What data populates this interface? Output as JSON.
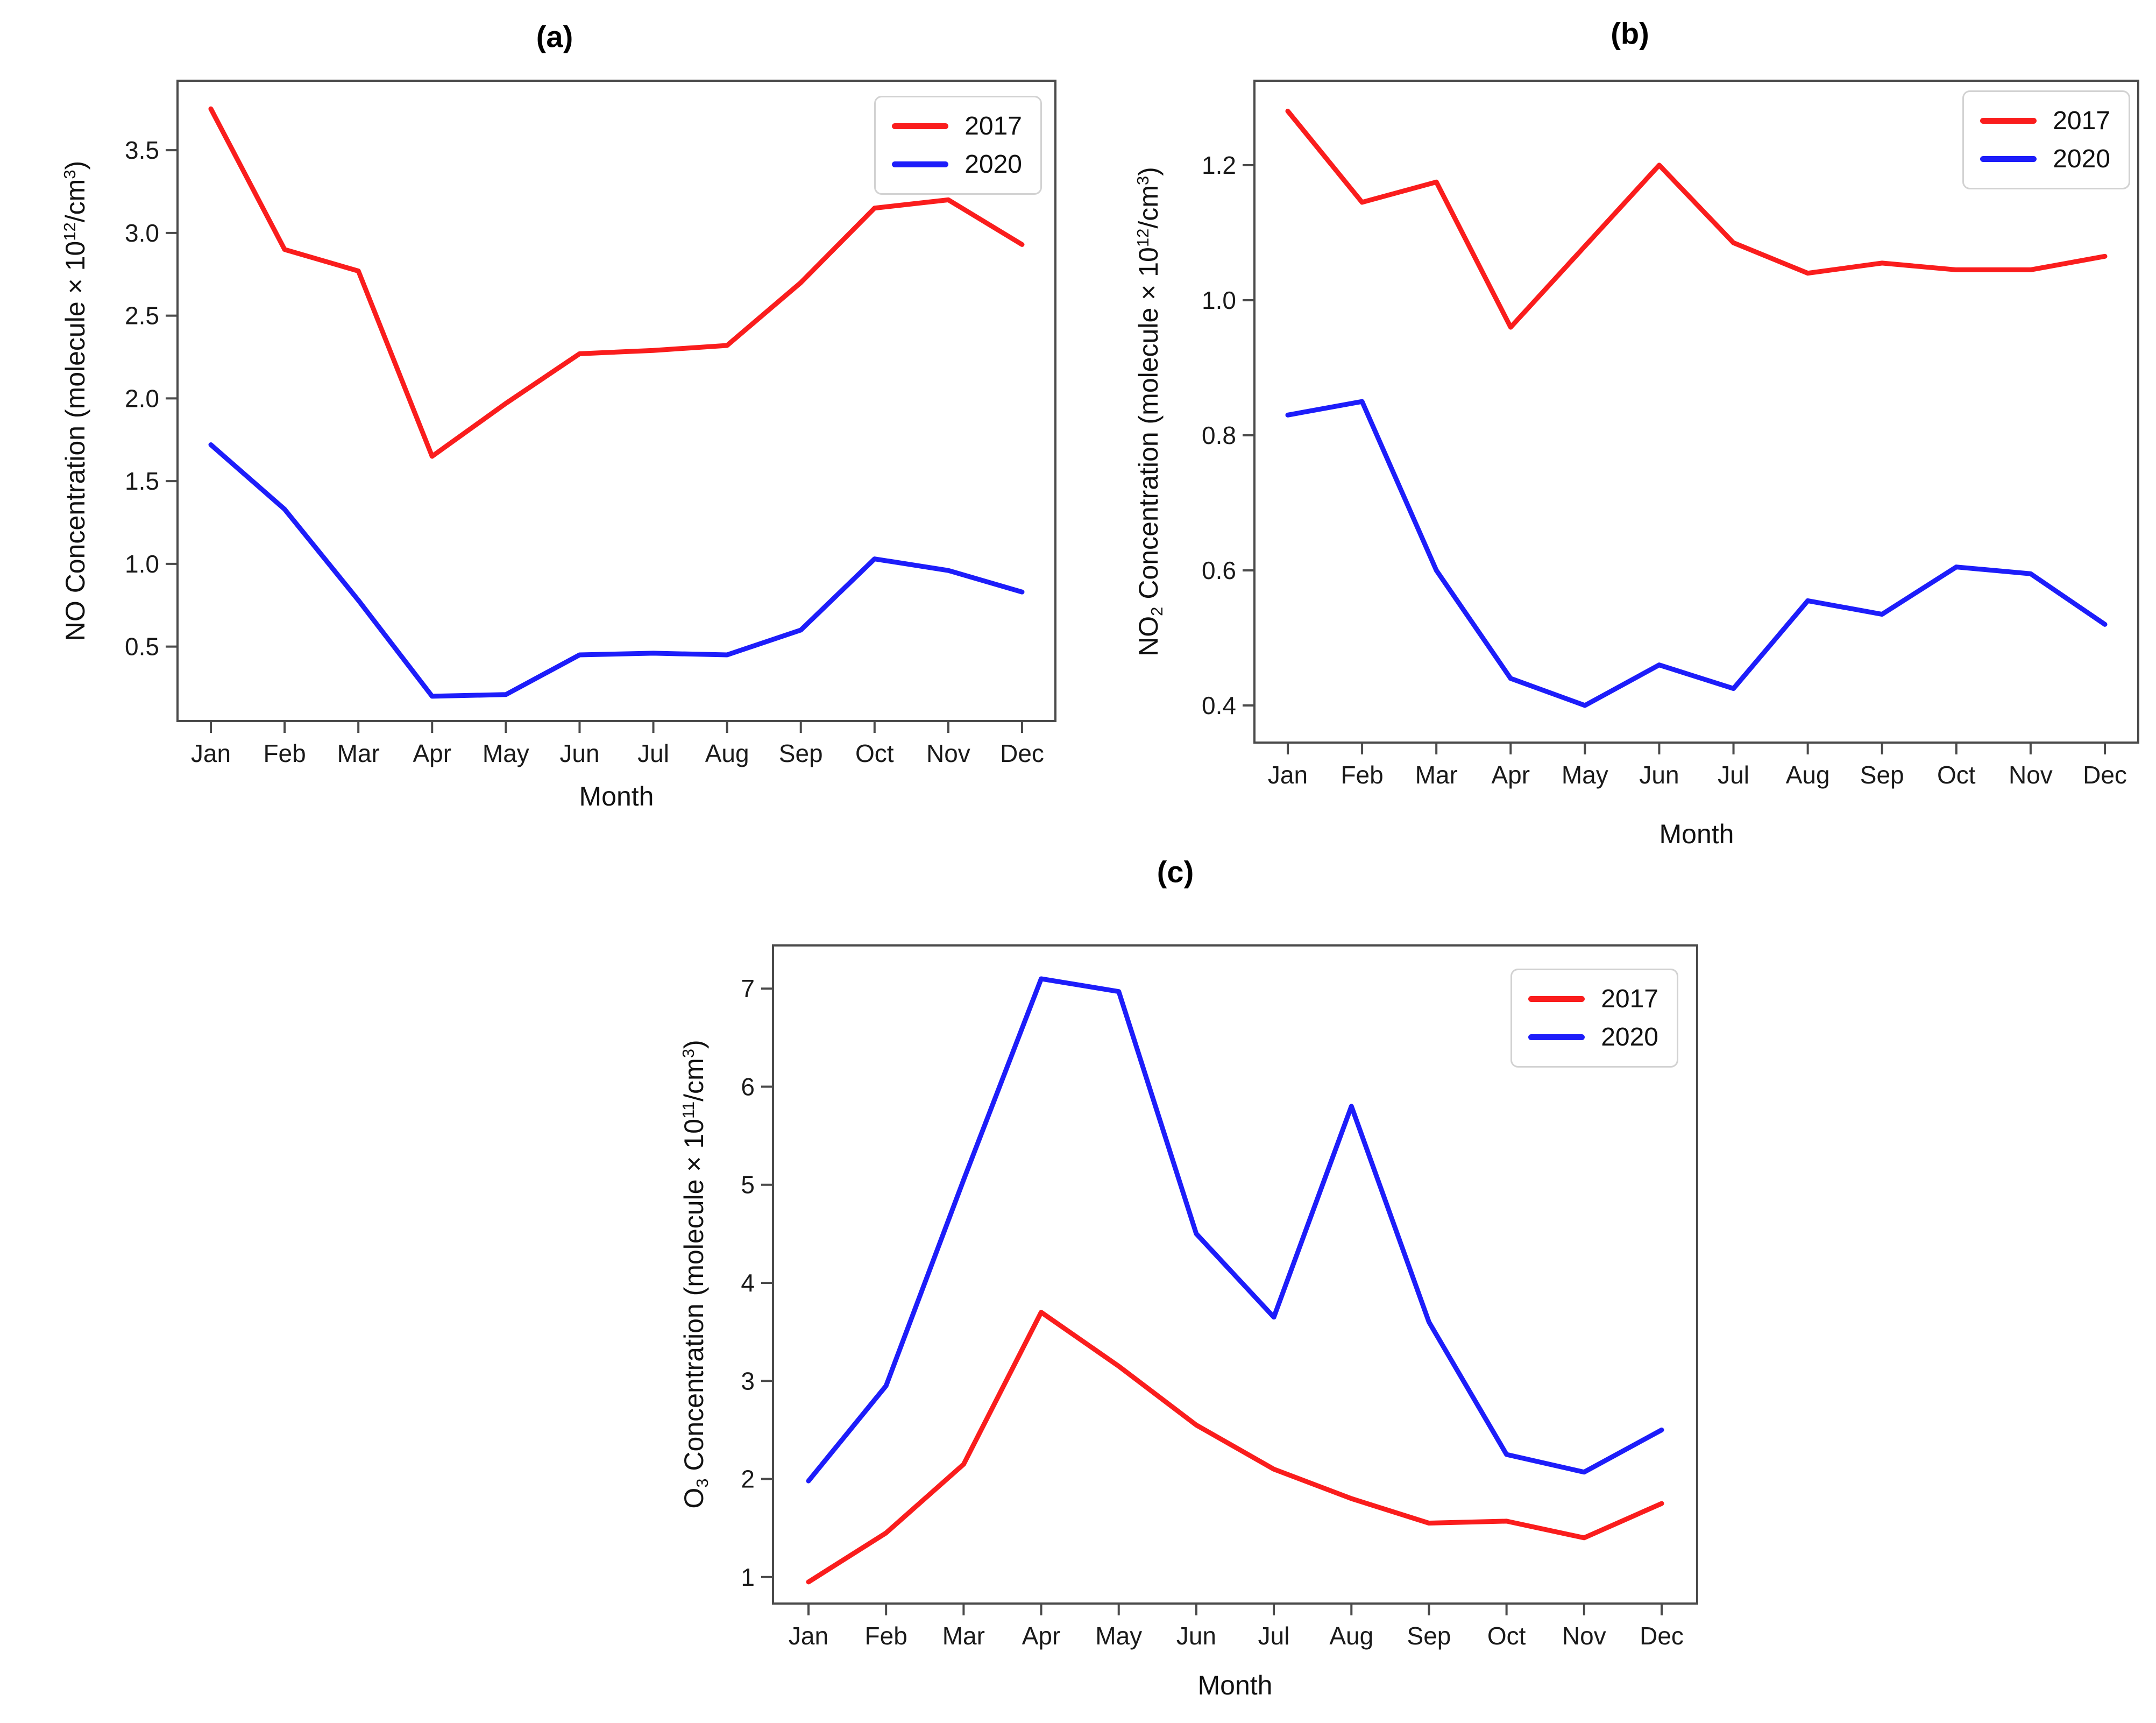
{
  "figure": {
    "background": "#ffffff"
  },
  "styles": {
    "axis_color": "#4a4a4a",
    "text_color": "#1a1a1a",
    "legend_border": "#d2d2d2",
    "series_2017_color": "#fa1d1d",
    "series_2020_color": "#1d1dfa"
  },
  "chart_data": [
    {
      "type": "line",
      "title": "(a)",
      "xlabel": "Month",
      "ylabel": "NO Concentration (molecule × 10¹²/cm³)",
      "ylabel_parts": [
        {
          "t": "NO Concentration (molecule × 10"
        },
        {
          "t": "12",
          "style": "sup"
        },
        {
          "t": "/cm"
        },
        {
          "t": "3",
          "style": "sup"
        },
        {
          "t": ")"
        }
      ],
      "categories": [
        "Jan",
        "Feb",
        "Mar",
        "Apr",
        "May",
        "Jun",
        "Jul",
        "Aug",
        "Sep",
        "Oct",
        "Nov",
        "Dec"
      ],
      "ylim": [
        0.05,
        3.92
      ],
      "yticks": {
        "values": [
          0.5,
          1.0,
          1.5,
          2.0,
          2.5,
          3.0,
          3.5
        ],
        "labels": [
          "0.5",
          "1.0",
          "1.5",
          "2.0",
          "2.5",
          "3.0",
          "3.5"
        ]
      },
      "grid": false,
      "legend_position": "upper right",
      "series": [
        {
          "name": "2017",
          "color": "#fa1d1d",
          "values": [
            3.75,
            2.9,
            2.77,
            1.65,
            1.97,
            2.27,
            2.29,
            2.32,
            2.7,
            3.15,
            3.2,
            2.93
          ]
        },
        {
          "name": "2020",
          "color": "#1d1dfa",
          "values": [
            1.72,
            1.33,
            0.78,
            0.2,
            0.21,
            0.45,
            0.46,
            0.45,
            0.6,
            1.03,
            0.96,
            0.83
          ]
        }
      ]
    },
    {
      "type": "line",
      "title": "(b)",
      "xlabel": "Month",
      "ylabel": "NO₂ Concentration (molecule × 10¹²/cm³)",
      "ylabel_parts": [
        {
          "t": "NO"
        },
        {
          "t": "2",
          "style": "sub"
        },
        {
          "t": " Concentration (molecule × 10"
        },
        {
          "t": "12",
          "style": "sup"
        },
        {
          "t": "/cm"
        },
        {
          "t": "3",
          "style": "sup"
        },
        {
          "t": ")"
        }
      ],
      "categories": [
        "Jan",
        "Feb",
        "Mar",
        "Apr",
        "May",
        "Jun",
        "Jul",
        "Aug",
        "Sep",
        "Oct",
        "Nov",
        "Dec"
      ],
      "ylim": [
        0.345,
        1.325
      ],
      "yticks": {
        "values": [
          0.4,
          0.6,
          0.8,
          1.0,
          1.2
        ],
        "labels": [
          "0.4",
          "0.6",
          "0.8",
          "1.0",
          "1.2"
        ]
      },
      "grid": false,
      "legend_position": "upper right",
      "series": [
        {
          "name": "2017",
          "color": "#fa1d1d",
          "values": [
            1.28,
            1.145,
            1.175,
            0.96,
            1.08,
            1.2,
            1.085,
            1.04,
            1.055,
            1.045,
            1.045,
            1.065
          ]
        },
        {
          "name": "2020",
          "color": "#1d1dfa",
          "values": [
            0.83,
            0.85,
            0.6,
            0.44,
            0.4,
            0.46,
            0.425,
            0.555,
            0.535,
            0.605,
            0.595,
            0.52
          ]
        }
      ]
    },
    {
      "type": "line",
      "title": "(c)",
      "xlabel": "Month",
      "ylabel": "O₃ Concentration (molecule × 10¹¹/cm³)",
      "ylabel_parts": [
        {
          "t": "O"
        },
        {
          "t": "3",
          "style": "sub"
        },
        {
          "t": " Concentration (molecule × 10"
        },
        {
          "t": "11",
          "style": "sup"
        },
        {
          "t": "/cm"
        },
        {
          "t": "3",
          "style": "sup"
        },
        {
          "t": ")"
        }
      ],
      "categories": [
        "Jan",
        "Feb",
        "Mar",
        "Apr",
        "May",
        "Jun",
        "Jul",
        "Aug",
        "Sep",
        "Oct",
        "Nov",
        "Dec"
      ],
      "ylim": [
        0.73,
        7.44
      ],
      "yticks": {
        "values": [
          1,
          2,
          3,
          4,
          5,
          6,
          7
        ],
        "labels": [
          "1",
          "2",
          "3",
          "4",
          "5",
          "6",
          "7"
        ]
      },
      "grid": false,
      "legend_position": "upper right",
      "series": [
        {
          "name": "2017",
          "color": "#fa1d1d",
          "values": [
            0.95,
            1.45,
            2.15,
            3.7,
            3.15,
            2.55,
            2.1,
            1.8,
            1.55,
            1.57,
            1.4,
            1.75
          ]
        },
        {
          "name": "2020",
          "color": "#1d1dfa",
          "values": [
            1.98,
            2.95,
            5.05,
            7.1,
            6.97,
            4.5,
            3.65,
            5.8,
            3.6,
            2.25,
            2.07,
            2.5
          ]
        }
      ]
    }
  ]
}
